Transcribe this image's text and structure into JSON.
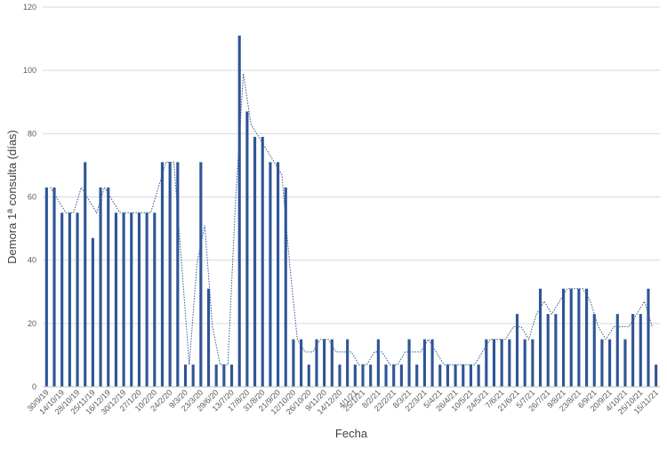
{
  "chart_data": {
    "type": "bar",
    "xlabel": "Fecha",
    "ylabel": "Demora 1ª consulta (días)",
    "ylim": [
      0,
      120
    ],
    "yticks": [
      0,
      20,
      40,
      60,
      80,
      100,
      120
    ],
    "grid": true,
    "bar_color": "#2f5597",
    "trend_color": "#2f5597",
    "trend": "dotted moving average (2 periods)",
    "tick_labels": [
      "30/9/19",
      "14/10/19",
      "28/10/19",
      "25/11/19",
      "16/12/19",
      "30/12/19",
      "27/1/20",
      "10/2/20",
      "24/2/20",
      "9/3/20",
      "23/3/20",
      "29/6/20",
      "13/7/20",
      "17/8/20",
      "31/8/20",
      "21/9/20",
      "12/10/20",
      "26/10/20",
      "9/11/20",
      "14/12/20",
      "4/1/21",
      "25/1/21",
      "8/2/21",
      "22/2/21",
      "8/3/21",
      "22/3/21",
      "5/4/21",
      "26/4/21",
      "10/5/21",
      "24/5/21",
      "7/6/21",
      "21/6/21",
      "5/7/21",
      "26/7/21",
      "9/8/21",
      "23/8/21",
      "6/9/21",
      "20/9/21",
      "4/10/21",
      "25/10/21",
      "15/11/21"
    ],
    "values": [
      63,
      63,
      55,
      55,
      55,
      71,
      47,
      63,
      63,
      55,
      55,
      55,
      55,
      55,
      55,
      71,
      71,
      71,
      7,
      7,
      71,
      31,
      7,
      7,
      7,
      111,
      87,
      79,
      79,
      71,
      71,
      63,
      15,
      15,
      7,
      15,
      15,
      15,
      7,
      15,
      7,
      7,
      7,
      15,
      7,
      7,
      7,
      15,
      7,
      15,
      15,
      7,
      7,
      7,
      7,
      7,
      7,
      15,
      15,
      15,
      15,
      23,
      15,
      15,
      31,
      23,
      23,
      31,
      31,
      31,
      31,
      23,
      15,
      15,
      23,
      15,
      23,
      23,
      31,
      7
    ]
  }
}
